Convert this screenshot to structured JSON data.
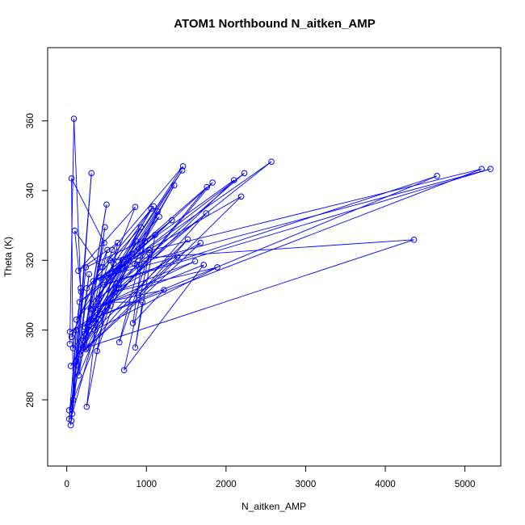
{
  "chart_data": {
    "type": "line",
    "title": "ATOM1 Northbound N_aitken_AMP",
    "xlabel": "N_aitken_AMP",
    "ylabel": "Theta (K)",
    "xlim": [
      -240,
      5450
    ],
    "ylim": [
      261,
      381
    ],
    "x_ticks": [
      0,
      1000,
      2000,
      3000,
      4000,
      5000
    ],
    "y_ticks": [
      280,
      300,
      320,
      340,
      360
    ],
    "grid": false,
    "legend": "none",
    "color": "#0000ff",
    "marker": "open-circle",
    "series": [
      {
        "points": [
          [
            38,
            296
          ],
          [
            90,
            360.6
          ],
          [
            175,
            312
          ],
          [
            60,
            274
          ],
          [
            310,
            345
          ],
          [
            130,
            290
          ],
          [
            470,
            325
          ],
          [
            60,
            343.5
          ],
          [
            80,
            280
          ],
          [
            500,
            336
          ],
          [
            230,
            299
          ],
          [
            860,
            335.3
          ],
          [
            145,
            317
          ],
          [
            640,
            325
          ],
          [
            250,
            278
          ],
          [
            450,
            318
          ],
          [
            1090,
            335.5
          ],
          [
            300,
            306
          ],
          [
            1460,
            347
          ],
          [
            570,
            323
          ],
          [
            200,
            295
          ],
          [
            1350,
            341.5
          ],
          [
            330,
            302
          ],
          [
            1160,
            332.5
          ],
          [
            520,
            315
          ],
          [
            2230,
            345
          ],
          [
            400,
            309
          ],
          [
            2570,
            348.3
          ],
          [
            620,
            317
          ],
          [
            1830,
            342.3
          ],
          [
            280,
            300
          ],
          [
            1760,
            341
          ],
          [
            700,
            320
          ],
          [
            2100,
            343
          ],
          [
            380,
            305
          ],
          [
            1140,
            334
          ],
          [
            850,
            319
          ],
          [
            5320,
            346.2
          ],
          [
            470,
            313
          ],
          [
            4650,
            344.2
          ],
          [
            300,
            303
          ],
          [
            5210,
            346.2
          ],
          [
            540,
            320
          ],
          [
            4360,
            325.9
          ],
          [
            250,
            295
          ],
          [
            1750,
            333.5
          ],
          [
            650,
            312
          ],
          [
            1680,
            325
          ],
          [
            170,
            293
          ],
          [
            2190,
            338.3
          ],
          [
            420,
            315
          ],
          [
            1390,
            321
          ],
          [
            900,
            310
          ],
          [
            1520,
            326
          ],
          [
            350,
            300
          ],
          [
            1890,
            318
          ],
          [
            600,
            311
          ],
          [
            1610,
            319.7
          ],
          [
            330,
            306
          ],
          [
            1720,
            318.7
          ],
          [
            720,
            288.5
          ],
          [
            1040,
            322
          ],
          [
            660,
            296.5
          ],
          [
            980,
            325.5
          ],
          [
            830,
            302
          ],
          [
            1220,
            311.5
          ],
          [
            500,
            308
          ],
          [
            950,
            308
          ],
          [
            860,
            295
          ],
          [
            1110,
            327.3
          ],
          [
            240,
            318
          ],
          [
            50,
            272.7
          ],
          [
            120,
            300
          ],
          [
            30,
            274.5
          ],
          [
            280,
            316
          ],
          [
            70,
            276
          ],
          [
            400,
            303
          ],
          [
            40,
            299.5
          ],
          [
            550,
            307
          ],
          [
            50,
            289.7
          ],
          [
            620,
            312
          ],
          [
            80,
            294.8
          ],
          [
            180,
            311
          ],
          [
            100,
            328.5
          ],
          [
            420,
            318
          ],
          [
            60,
            298
          ],
          [
            510,
            323
          ],
          [
            30,
            277
          ],
          [
            650,
            313
          ],
          [
            240,
            294.5
          ],
          [
            480,
            329.5
          ],
          [
            150,
            287
          ],
          [
            870,
            325.5
          ],
          [
            210,
            297
          ],
          [
            590,
            319
          ],
          [
            380,
            294
          ],
          [
            780,
            320
          ],
          [
            120,
            303
          ],
          [
            1060,
            334.8
          ],
          [
            400,
            307
          ],
          [
            930,
            329.5
          ],
          [
            250,
            312
          ],
          [
            1320,
            331.5
          ],
          [
            560,
            315.3
          ],
          [
            1450,
            345.8
          ],
          [
            220,
            301
          ],
          [
            1040,
            323
          ],
          [
            160,
            308
          ],
          [
            700,
            319
          ],
          [
            330,
            314
          ],
          [
            880,
            318.8
          ]
        ]
      }
    ]
  }
}
